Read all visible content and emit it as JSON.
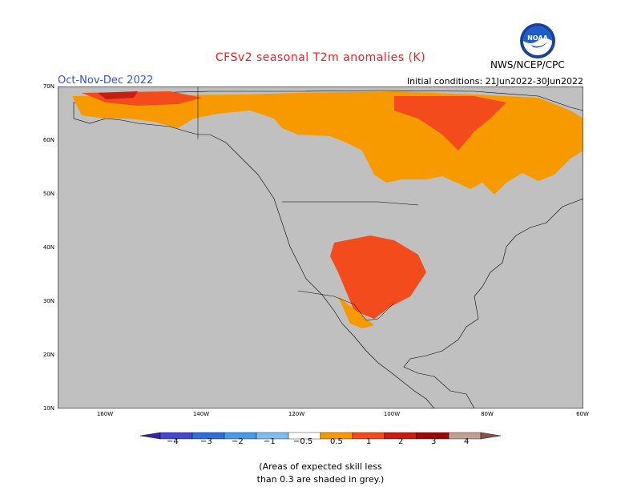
{
  "title": "CFSv2 seasonal T2m anomalies (K)",
  "season": "Oct-Nov-Dec 2022",
  "initial_conditions": "Initial conditions: 21Jun2022-30Jun2022",
  "agency": "NWS/NCEP/CPC",
  "logo_text": "NOAA",
  "lat_labels": [
    "70N",
    "60N",
    "50N",
    "40N",
    "30N",
    "20N",
    "10N"
  ],
  "lon_labels": [
    "160W",
    "140W",
    "120W",
    "100W",
    "80W",
    "60W"
  ],
  "colorbar": {
    "labels": [
      "−4",
      "−3",
      "−2",
      "−1",
      "−0.5",
      "0.5",
      "1",
      "2",
      "3",
      "4"
    ],
    "colors": [
      "#3b22a6",
      "#4648cc",
      "#2f6fd8",
      "#4a9be6",
      "#7fbcf2",
      "#ffffff",
      "#f79a00",
      "#f44b1c",
      "#c51f13",
      "#9a0a0a",
      "#c29f93",
      "#8b5147"
    ]
  },
  "note_line1": "(Areas of expected skill less",
  "note_line2": "than 0.3 are shaded in grey.)",
  "colors": {
    "ocean": "#c0c0c0",
    "land_noskill": "#c0c0c0",
    "land_neutral": "#ffffff",
    "anom_05_1": "#f79a00",
    "anom_1_2": "#f44b1c",
    "anom_2_3": "#c51f13",
    "anom_3_4": "#9a0a0a"
  }
}
